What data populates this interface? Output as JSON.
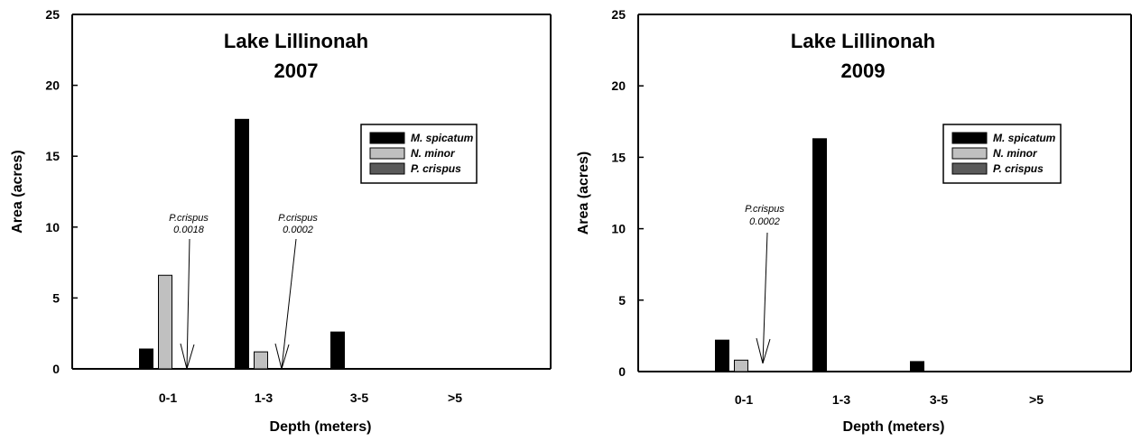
{
  "chart_data": [
    {
      "type": "bar",
      "title_line1": "Lake Lillinonah",
      "title_line2": "2007",
      "xlabel": "Depth (meters)",
      "ylabel": "Area (acres)",
      "ylim": [
        0,
        25
      ],
      "yticks": [
        "0",
        "5",
        "10",
        "15",
        "20",
        "25"
      ],
      "categories": [
        "0-1",
        "1-3",
        "3-5",
        ">5"
      ],
      "series": [
        {
          "name": "M. spicatum",
          "color": "#000000",
          "values": [
            1.4,
            17.6,
            2.6,
            0
          ]
        },
        {
          "name": "N. minor",
          "color": "#c0c0c0",
          "values": [
            6.6,
            1.2,
            0,
            0
          ]
        },
        {
          "name": "P. crispus",
          "color": "#5a5a5a",
          "values": [
            0.0018,
            0.0002,
            0,
            0
          ]
        }
      ],
      "annotations": [
        {
          "line1": "P.crispus",
          "line2": "0.0018",
          "category": "0-1"
        },
        {
          "line1": "P.crispus",
          "line2": "0.0002",
          "category": "1-3"
        }
      ],
      "legend_position": "upper-right"
    },
    {
      "type": "bar",
      "title_line1": "Lake Lillinonah",
      "title_line2": "2009",
      "xlabel": "Depth (meters)",
      "ylabel": "Area (acres)",
      "ylim": [
        0,
        25
      ],
      "yticks": [
        "0",
        "5",
        "10",
        "15",
        "20",
        "25"
      ],
      "categories": [
        "0-1",
        "1-3",
        "3-5",
        ">5"
      ],
      "series": [
        {
          "name": "M. spicatum",
          "color": "#000000",
          "values": [
            2.2,
            16.3,
            0.7,
            0
          ]
        },
        {
          "name": "N. minor",
          "color": "#c0c0c0",
          "values": [
            0.8,
            0,
            0,
            0
          ]
        },
        {
          "name": "P. crispus",
          "color": "#5a5a5a",
          "values": [
            0.0002,
            0,
            0,
            0
          ]
        }
      ],
      "annotations": [
        {
          "line1": "P.crispus",
          "line2": "0.0002",
          "category": "0-1"
        }
      ],
      "legend_position": "upper-right"
    }
  ]
}
